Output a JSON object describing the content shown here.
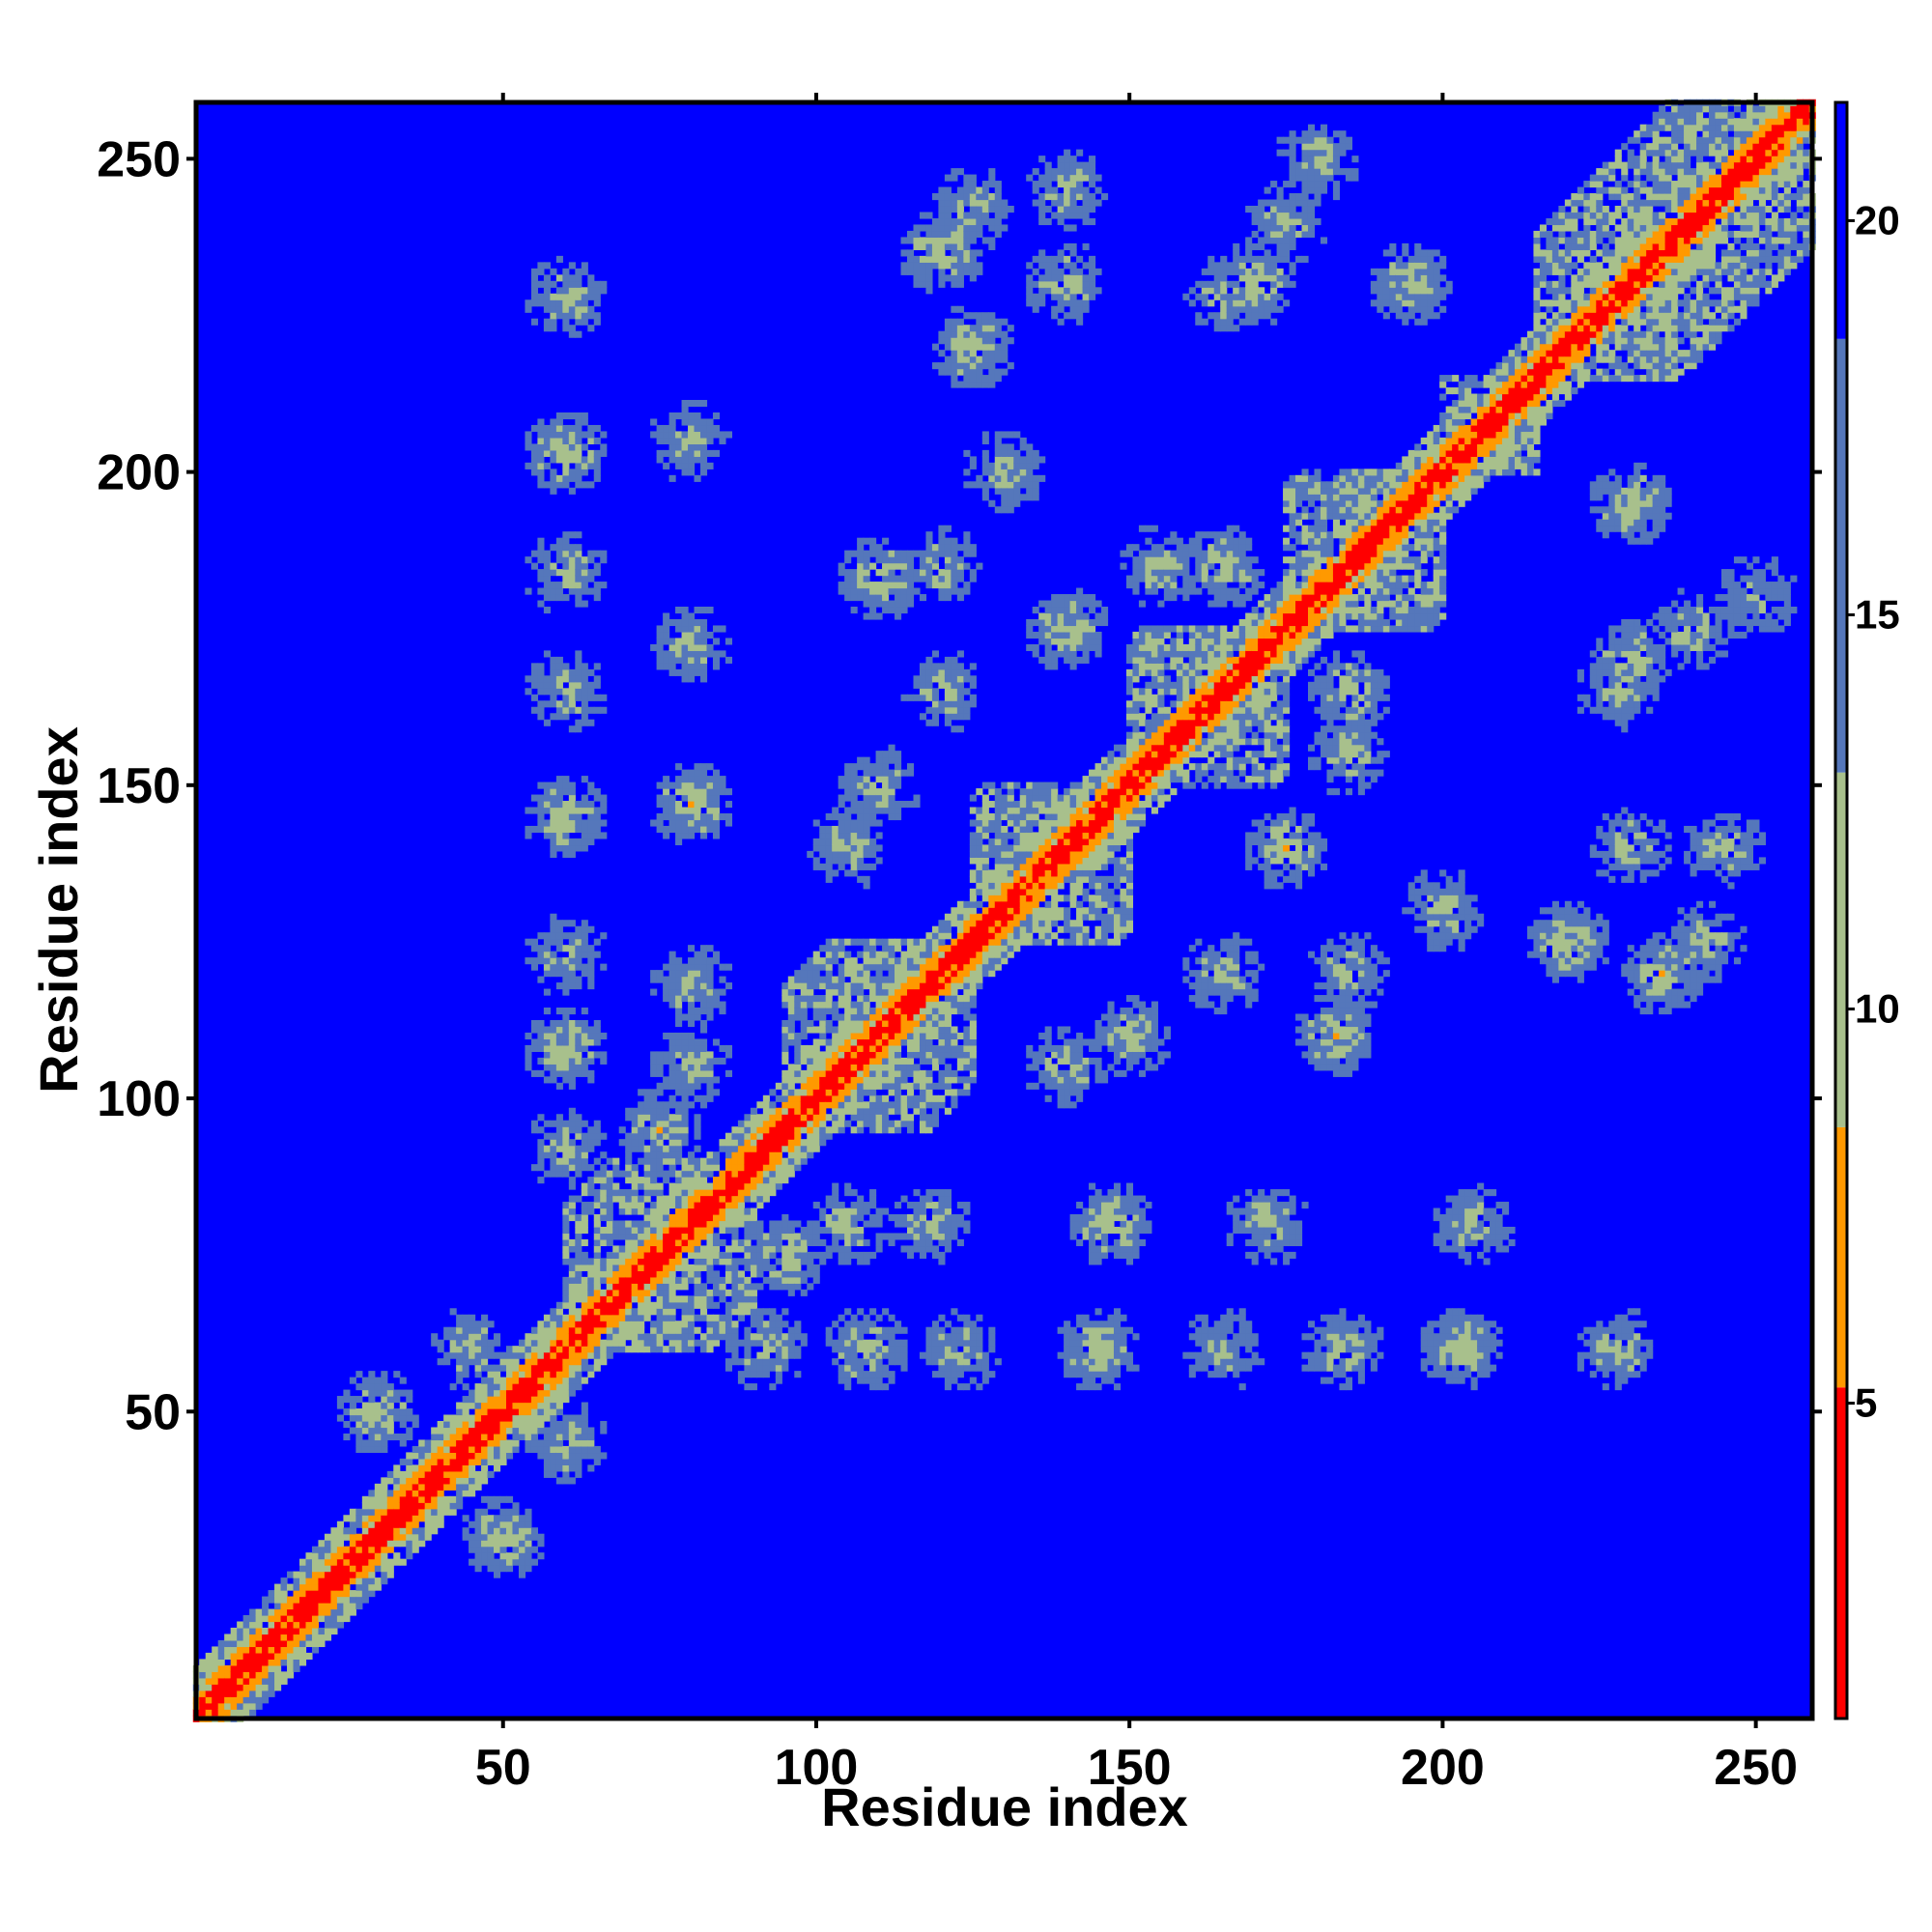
{
  "chart_data": {
    "type": "heatmap",
    "title": "",
    "xlabel": "Residue index",
    "ylabel": "Residue index",
    "xlim": [
      1,
      259
    ],
    "ylim": [
      1,
      259
    ],
    "x_ticks": [
      50,
      100,
      150,
      200,
      250
    ],
    "y_ticks": [
      50,
      100,
      150,
      200,
      250
    ],
    "colorbar": {
      "ticks": [
        5,
        10,
        15,
        20
      ],
      "range": [
        1,
        21.5
      ],
      "colors": {
        "close": "#ff0000",
        "mid": "#ff9900",
        "medium": "#a8c08c",
        "far": "#5577bb",
        "background": "#0000ff"
      }
    },
    "diagonal": {
      "from": 1,
      "to": 259,
      "value": 3.8
    },
    "helix_blocks": [
      [
        60,
        90
      ],
      [
        95,
        125
      ],
      [
        125,
        150
      ],
      [
        150,
        175
      ],
      [
        175,
        200
      ],
      [
        200,
        215
      ],
      [
        215,
        259
      ]
    ],
    "contact_spots": [
      [
        30,
        50,
        10
      ],
      [
        45,
        60,
        11
      ],
      [
        60,
        108,
        10
      ],
      [
        60,
        123,
        11
      ],
      [
        60,
        145,
        10
      ],
      [
        60,
        165,
        11
      ],
      [
        60,
        184,
        11
      ],
      [
        60,
        203,
        10
      ],
      [
        60,
        228,
        11
      ],
      [
        80,
        105,
        11
      ],
      [
        80,
        118,
        11
      ],
      [
        80,
        147,
        10
      ],
      [
        80,
        172,
        11
      ],
      [
        80,
        205,
        11
      ],
      [
        105,
        140,
        11
      ],
      [
        110,
        150,
        11
      ],
      [
        110,
        183,
        10
      ],
      [
        120,
        165,
        11
      ],
      [
        120,
        185,
        11
      ],
      [
        125,
        220,
        10
      ],
      [
        130,
        200,
        11
      ],
      [
        140,
        175,
        10
      ],
      [
        140,
        230,
        11
      ],
      [
        165,
        185,
        10
      ],
      [
        165,
        228,
        11
      ],
      [
        170,
        230,
        10
      ],
      [
        175,
        240,
        11
      ],
      [
        180,
        250,
        11
      ],
      [
        195,
        230,
        10
      ],
      [
        120,
        235,
        10
      ],
      [
        125,
        242,
        11
      ],
      [
        140,
        245,
        11
      ],
      [
        155,
        185,
        11
      ],
      [
        92,
        60,
        11
      ],
      [
        95,
        75,
        10
      ]
    ]
  }
}
